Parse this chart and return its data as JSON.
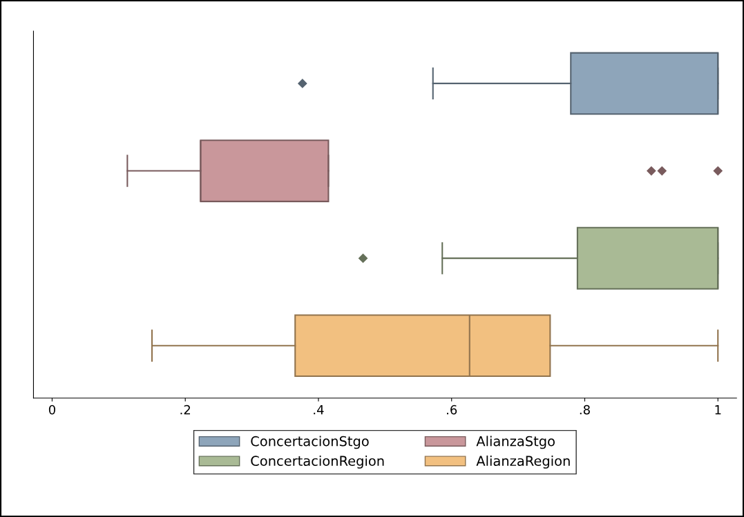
{
  "chart_data": {
    "type": "box",
    "orientation": "horizontal",
    "categories": [
      null,
      null,
      null,
      null
    ],
    "xlim": [
      -0.028,
      1.028
    ],
    "xticks": [
      0,
      {
        "value": 0.2,
        "label": ".2"
      },
      {
        "value": 0.4,
        "label": ".4"
      },
      {
        "value": 0.6,
        "label": ".6"
      },
      {
        "value": 0.8,
        "label": ".8"
      },
      1
    ],
    "grid": false,
    "legend": "bottom",
    "marker": "diamond",
    "series": [
      {
        "name": "ConcertacionStgo",
        "color": "#8ea5ba",
        "boxes": [
          {
            "low": 0.572,
            "q1": 0.779,
            "median": 1.0,
            "q3": 1.0,
            "high": 1.0,
            "outliers": [
              0.376
            ]
          },
          null,
          null,
          null
        ]
      },
      {
        "name": "AlianzaStgo",
        "color": "#c9979b",
        "boxes": [
          null,
          {
            "low": 0.113,
            "q1": 0.223,
            "median": 0.223,
            "q3": 0.415,
            "high": 0.415,
            "outliers": [
              0.9,
              0.916,
              1.0
            ]
          },
          null,
          null
        ]
      },
      {
        "name": "ConcertacionRegion",
        "color": "#a9ba95",
        "boxes": [
          null,
          null,
          {
            "low": 0.586,
            "q1": 0.789,
            "median": 1.0,
            "q3": 1.0,
            "high": 1.0,
            "outliers": [
              0.467
            ]
          },
          null
        ]
      },
      {
        "name": "AlianzaRegion",
        "color": "#f2c080",
        "boxes": [
          null,
          null,
          null,
          {
            "low": 0.15,
            "q1": 0.365,
            "median": 0.627,
            "q3": 0.748,
            "high": 1.0
          }
        ]
      }
    ]
  }
}
